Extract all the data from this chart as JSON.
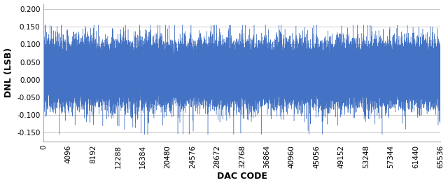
{
  "title": "",
  "xlabel": "DAC CODE",
  "ylabel": "DNL (LSB)",
  "xlim": [
    0,
    65536
  ],
  "ylim": [
    -0.175,
    0.215
  ],
  "yticks": [
    -0.15,
    -0.1,
    -0.05,
    0.0,
    0.05,
    0.1,
    0.15,
    0.2
  ],
  "ytick_labels": [
    "-0.150",
    "-0.100",
    "-0.050",
    "0.000",
    "0.050",
    "0.100",
    "0.150",
    "0.200"
  ],
  "xticks": [
    0,
    4096,
    8192,
    12288,
    16384,
    20480,
    24576,
    28672,
    32768,
    36864,
    40960,
    45056,
    49152,
    53248,
    57344,
    61440,
    65536
  ],
  "xtick_labels": [
    "0",
    "4096",
    "8192",
    "12288",
    "16384",
    "20480",
    "24576",
    "28672",
    "32768",
    "36864",
    "40960",
    "45056",
    "49152",
    "53248",
    "57344",
    "61440",
    "65536"
  ],
  "line_color": "#4472C4",
  "plot_bg_color": "#ffffff",
  "grid_color": "#c0c0c0",
  "num_points": 65536,
  "seed": 42,
  "noise_std": 0.038,
  "noise_bias": 0.018,
  "spike_prob": 0.015,
  "spike_scale": 0.06,
  "xlabel_fontsize": 9,
  "ylabel_fontsize": 9,
  "tick_fontsize": 7.5,
  "fig_bg_color": "#ffffff",
  "line_width": 0.3
}
